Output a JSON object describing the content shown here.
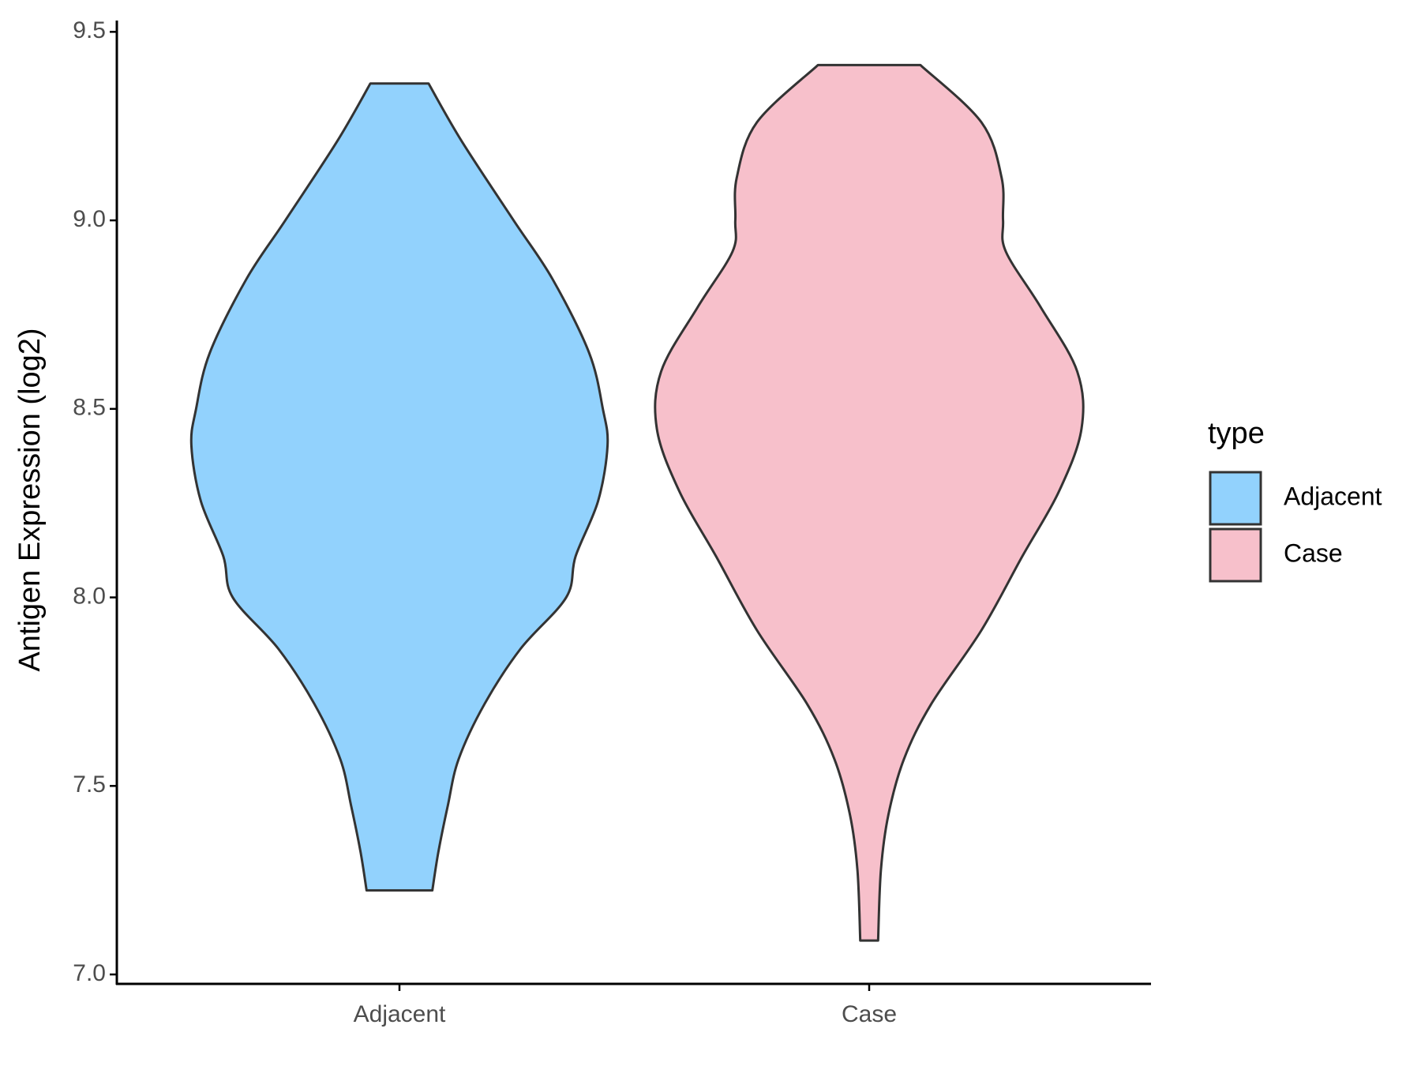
{
  "chart_data": {
    "type": "violin",
    "y_label": "Antigen Expression (log2)",
    "categories": [
      "Adjacent",
      "Case"
    ],
    "legend_title": "type",
    "legend": "right",
    "ylim": [
      6.975,
      9.53
    ],
    "yticks": [
      {
        "value": 7,
        "label": "7.0"
      },
      7.5,
      {
        "value": 8,
        "label": "8.0"
      },
      8.5,
      {
        "value": 9,
        "label": "9.0"
      },
      9.5
    ],
    "series": [
      {
        "name": "Adjacent",
        "color": "#92d2fd",
        "values": [
          9.363,
          9.211,
          9.0,
          8.844,
          8.648,
          8.5,
          8.403,
          8.256,
          8.109,
          8.0,
          7.864,
          7.717,
          7.571,
          7.448,
          7.326,
          7.223
        ],
        "widths": [
          0.062,
          0.132,
          0.243,
          0.326,
          0.404,
          0.433,
          0.443,
          0.423,
          0.375,
          0.355,
          0.258,
          0.181,
          0.126,
          0.103,
          0.083,
          0.07
        ]
      },
      {
        "name": "Case",
        "color": "#f7c0cb",
        "values": [
          9.412,
          9.26,
          9.113,
          9.0,
          8.917,
          8.77,
          8.599,
          8.447,
          8.281,
          8.109,
          7.913,
          7.717,
          7.571,
          7.424,
          7.277,
          7.09
        ],
        "widths": [
          0.109,
          0.239,
          0.282,
          0.285,
          0.291,
          0.365,
          0.443,
          0.452,
          0.404,
          0.326,
          0.239,
          0.132,
          0.074,
          0.041,
          0.025,
          0.019
        ]
      }
    ]
  }
}
